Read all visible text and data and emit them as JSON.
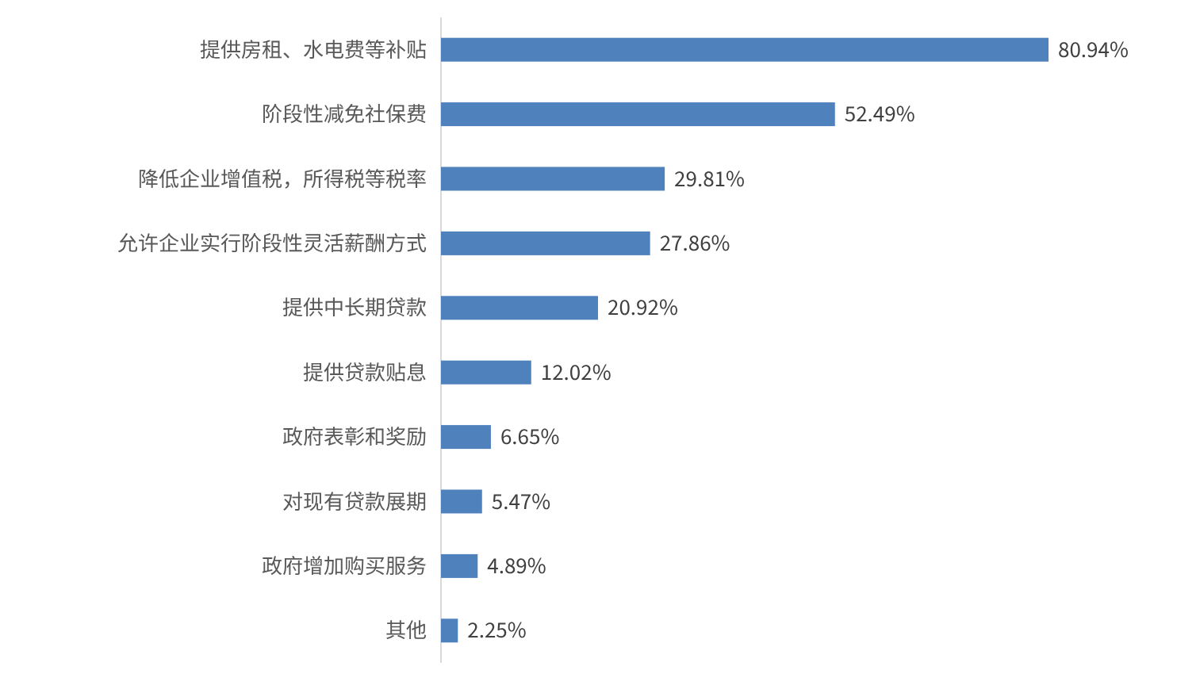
{
  "chart_data": {
    "type": "bar",
    "orientation": "horizontal",
    "color": "#4f81bd",
    "categories": [
      "提供房租、水电费等补贴",
      "阶段性减免社保费",
      "降低企业增值税，所得税等税率",
      "允许企业实行阶段性灵活薪酬方式",
      "提供中长期贷款",
      "提供贷款贴息",
      "政府表彰和奖励",
      "对现有贷款展期",
      "政府增加购买服务",
      "其他"
    ],
    "values": [
      80.94,
      52.49,
      29.81,
      27.86,
      20.92,
      12.02,
      6.65,
      5.47,
      4.89,
      2.25
    ],
    "value_labels": [
      "80.94%",
      "52.49%",
      "29.81%",
      "27.86%",
      "20.92%",
      "12.02%",
      "6.65%",
      "5.47%",
      "4.89%",
      "2.25%"
    ]
  }
}
